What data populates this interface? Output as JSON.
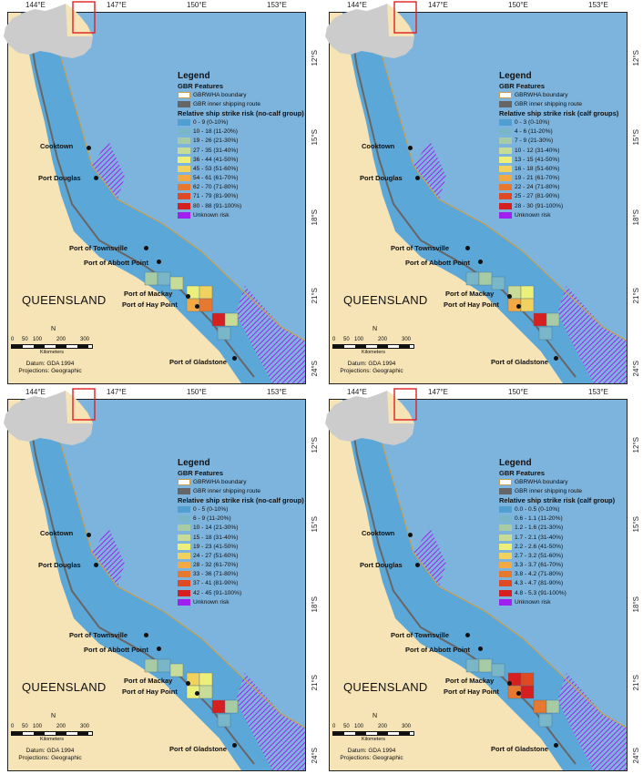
{
  "graticule": {
    "lon_labels": [
      "144°E",
      "147°E",
      "150°E",
      "153°E"
    ],
    "lat_labels": [
      "12°S",
      "15°S",
      "18°S",
      "21°S",
      "24°S"
    ]
  },
  "cities": {
    "cooktown": "Cooktown",
    "port_douglas": "Port Douglas",
    "townsville": "Port of Townsville",
    "abbot_point": "Port of Abbott Point",
    "mackay": "Port of Mackay",
    "hay_point": "Port of Hay Point",
    "gladstone": "Port of Gladstone"
  },
  "region_label": "QUEENSLAND",
  "scale": {
    "ticks": [
      "0",
      "50",
      "100",
      "200",
      "300"
    ],
    "unit": "Kilometers",
    "north": "N"
  },
  "datum": {
    "line1": "Datum: GDA 1994",
    "line2": "Projections: Geographic"
  },
  "legend_common": {
    "title": "Legend",
    "features_title": "GBR Features",
    "boundary": "GBRWHA boundary",
    "route": "GBR inner shipping route",
    "unknown": "Unknown risk"
  },
  "colors": {
    "land": "#f6e3b6",
    "sea": "#7db4dd",
    "boundary": "#c8a050",
    "route": "#666666",
    "unknown": "#a020f0",
    "inset_land": "#cccccc",
    "inset_highlight": "#f6e3b6",
    "inset_box": "#e02020",
    "ramp": [
      "#4f9fd3",
      "#78b6c8",
      "#a7cca5",
      "#c9dc97",
      "#ecef7a",
      "#f2d25e",
      "#f1a946",
      "#e7782f",
      "#e04a22",
      "#d62020"
    ]
  },
  "panels": [
    {
      "subtitle": "Relative ship strike risk (no-calf group)",
      "classes": [
        "0 - 9 (0-10%)",
        "10 - 18 (11-20%)",
        "19 - 26 (21-30%)",
        "27 - 35 (31-40%)",
        "36 - 44 (41-50%)",
        "45 - 53 (51-60%)",
        "54 - 61 (61-70%)",
        "62 - 70 (71-80%)",
        "71 - 79 (81-90%)",
        "80 - 88 (91-100%)"
      ]
    },
    {
      "subtitle": "Relative ship strike risk (calf groups)",
      "classes": [
        "0 - 3 (0-10%)",
        "4 - 6 (11-20%)",
        "7 - 9 (21-30%)",
        "10 - 12 (31-40%)",
        "13 - 15 (41-50%)",
        "16 - 18 (51-60%)",
        "19 - 21 (61-70%)",
        "22 - 24 (71-80%)",
        "25 - 27 (81-90%)",
        "28 - 30 (91-100%)"
      ]
    },
    {
      "subtitle": "Relative ship strike risk (no-calf group)",
      "classes": [
        "0 - 5 (0-10%)",
        "6 - 9 (11-20%)",
        "10 - 14 (21-30%)",
        "15 - 18 (31-40%)",
        "19 - 23 (41-50%)",
        "24 - 27 (51-60%)",
        "28 - 32 (61-70%)",
        "33 - 36 (71-80%)",
        "37 - 41 (81-90%)",
        "42 - 45 (91-100%)"
      ]
    },
    {
      "subtitle": "Relative ship strike risk (calf group)",
      "classes": [
        "0.0 - 0.5 (0-10%)",
        "0.6 - 1.1 (11-20%)",
        "1.2 - 1.6 (21-30%)",
        "1.7 - 2.1 (31-40%)",
        "2.2 - 2.6 (41-50%)",
        "2.7 - 3.2 (51-60%)",
        "3.3 - 3.7 (61-70%)",
        "3.8 - 4.2 (71-80%)",
        "4.3 - 4.7 (81-90%)",
        "4.8 - 5.3 (91-100%)"
      ]
    }
  ]
}
